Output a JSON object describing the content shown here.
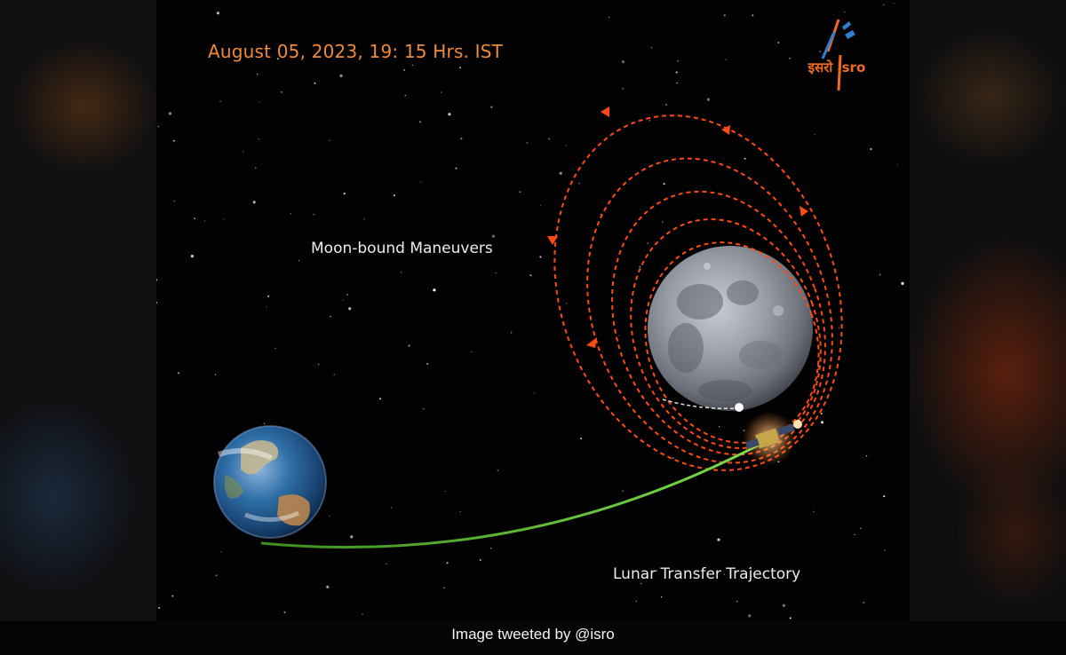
{
  "image": {
    "date_label": "August 05, 2023, 19: 15 Hrs. IST",
    "moon_label": "Moon-bound Maneuvers",
    "trajectory_label": "Lunar Transfer Trajectory",
    "logo_text": "इसरो isro",
    "caption": "Image tweeted by @isro"
  },
  "colors": {
    "date_text": "#f08a3a",
    "orbit": "#ff4a14",
    "trajectory": "#6fd23a",
    "label_text": "#ececec",
    "space": "#020203"
  },
  "icons": {
    "logo": "isro-logo-icon",
    "earth": "earth-icon",
    "moon": "moon-icon",
    "spacecraft": "spacecraft-icon"
  }
}
